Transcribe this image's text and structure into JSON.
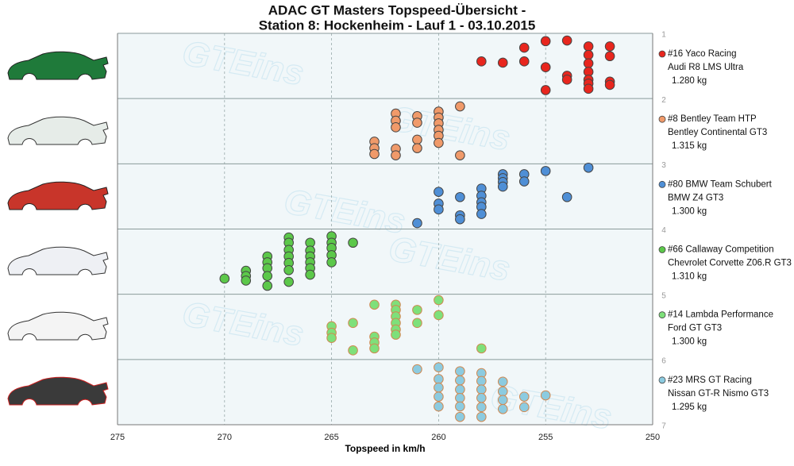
{
  "chart_data": {
    "type": "scatter",
    "title": "ADAC GT Masters Topspeed-Übersicht -",
    "subtitle": "Station 8: Hockenheim - Lauf 1 - 03.10.2015",
    "x_label": "Topspeed in km/h",
    "watermark": "GTEins",
    "xlim": [
      275,
      250
    ],
    "xticks": [
      275,
      270,
      265,
      260,
      255,
      250
    ],
    "ylim": [
      1,
      7
    ],
    "yticks": [
      1,
      2,
      3,
      4,
      5,
      6,
      7
    ],
    "grid": true,
    "series": [
      {
        "name": "#16 Yaco Racing",
        "car": "Audi R8 LMS Ultra",
        "weight": "1.280 kg",
        "color": "#e8261e",
        "x": [
          258,
          257,
          256,
          256,
          255,
          255,
          255,
          254,
          254,
          254,
          253,
          253,
          253,
          253,
          253,
          253,
          253,
          252,
          252,
          252,
          252
        ],
        "y": [
          1.43,
          1.45,
          1.22,
          1.43,
          1.12,
          1.52,
          1.87,
          1.11,
          1.65,
          1.71,
          1.2,
          1.33,
          1.46,
          1.59,
          1.71,
          1.77,
          1.85,
          1.2,
          1.35,
          1.74,
          1.79
        ]
      },
      {
        "name": "#8 Bentley Team HTP",
        "car": "Bentley Continental GT3",
        "weight": "1.315 kg",
        "color": "#f09a6a",
        "x": [
          259,
          259,
          260,
          260,
          260,
          260,
          260,
          260,
          261,
          261,
          261,
          261,
          262,
          262,
          262,
          262,
          262,
          263,
          263,
          263
        ],
        "y": [
          2.12,
          2.87,
          2.2,
          2.29,
          2.38,
          2.48,
          2.57,
          2.68,
          2.27,
          2.37,
          2.63,
          2.76,
          2.23,
          2.34,
          2.44,
          2.77,
          2.87,
          2.66,
          2.76,
          2.85
        ]
      },
      {
        "name": "#80 BMW Team Schubert",
        "car": "BMW Z4 GT3",
        "weight": "1.300 kg",
        "color": "#4f8fd6",
        "x": [
          261,
          260,
          260,
          260,
          259,
          259,
          259,
          258,
          258,
          258,
          258,
          258,
          257,
          257,
          257,
          257,
          256,
          256,
          255,
          254,
          253
        ],
        "y": [
          3.91,
          3.43,
          3.61,
          3.7,
          3.51,
          3.79,
          3.85,
          3.38,
          3.49,
          3.59,
          3.66,
          3.77,
          3.16,
          3.22,
          3.28,
          3.35,
          3.16,
          3.27,
          3.11,
          3.51,
          3.06
        ]
      },
      {
        "name": "#66 Callaway Competition",
        "car": "Chevrolet Corvette Z06.R GT3",
        "weight": "1.310 kg",
        "color": "#5cc84a",
        "x": [
          270,
          269,
          269,
          269,
          268,
          268,
          268,
          268,
          268,
          267,
          267,
          267,
          267,
          267,
          267,
          267,
          266,
          266,
          266,
          266,
          266,
          266,
          265,
          265,
          265,
          265,
          265,
          264
        ],
        "y": [
          4.76,
          4.64,
          4.72,
          4.79,
          4.42,
          4.51,
          4.6,
          4.72,
          4.87,
          4.13,
          4.21,
          4.32,
          4.42,
          4.52,
          4.63,
          4.81,
          4.21,
          4.33,
          4.42,
          4.51,
          4.6,
          4.7,
          4.11,
          4.21,
          4.29,
          4.4,
          4.51,
          4.21
        ]
      },
      {
        "name": "#14 Lambda Performance",
        "car": "Ford GT GT3",
        "weight": "1.300 kg",
        "color": "#7ee07a",
        "x": [
          265,
          265,
          265,
          264,
          264,
          263,
          263,
          263,
          263,
          262,
          262,
          262,
          262,
          262,
          262,
          261,
          261,
          260,
          260,
          258
        ],
        "y": [
          5.49,
          5.59,
          5.67,
          5.44,
          5.86,
          5.16,
          5.65,
          5.74,
          5.83,
          5.16,
          5.24,
          5.34,
          5.44,
          5.54,
          5.62,
          5.24,
          5.44,
          5.09,
          5.32,
          5.83
        ]
      },
      {
        "name": "#23 MRS GT Racing",
        "car": "Nissan GT-R Nismo GT3",
        "weight": "1.295 kg",
        "color": "#8ccbe0",
        "x": [
          261,
          260,
          260,
          260,
          260,
          260,
          259,
          259,
          259,
          259,
          259,
          259,
          258,
          258,
          258,
          258,
          258,
          258,
          257,
          257,
          257,
          257,
          256,
          256,
          255
        ],
        "y": [
          6.15,
          6.12,
          6.3,
          6.43,
          6.57,
          6.72,
          6.18,
          6.32,
          6.46,
          6.59,
          6.72,
          6.88,
          6.21,
          6.33,
          6.46,
          6.59,
          6.73,
          6.88,
          6.34,
          6.49,
          6.62,
          6.76,
          6.57,
          6.73,
          6.55
        ]
      }
    ]
  }
}
